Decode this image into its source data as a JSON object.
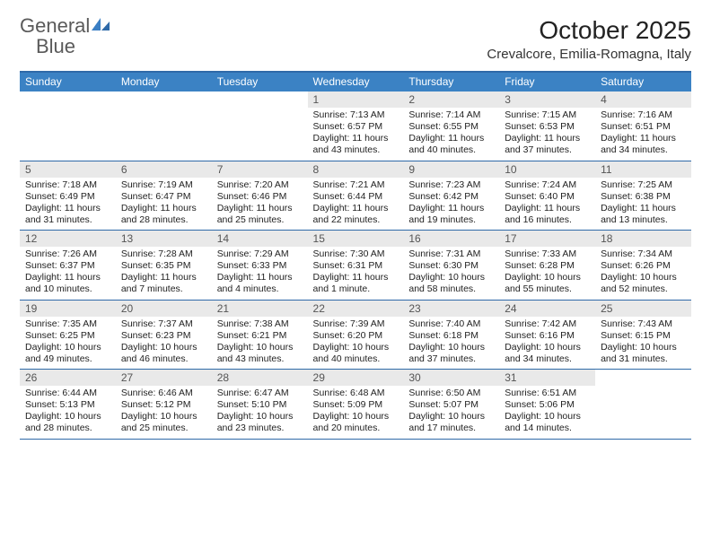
{
  "logo": {
    "text1": "General",
    "text2": "Blue"
  },
  "title": "October 2025",
  "location": "Crevalcore, Emilia-Romagna, Italy",
  "colors": {
    "header_bar": "#3b82c4",
    "header_border": "#2f6aa8",
    "daynum_bg": "#e9e9e9",
    "logo_gray": "#5a5a5a",
    "logo_blue": "#3b7fc4"
  },
  "weekdays": [
    "Sunday",
    "Monday",
    "Tuesday",
    "Wednesday",
    "Thursday",
    "Friday",
    "Saturday"
  ],
  "weeks": [
    [
      {
        "n": "",
        "sr": "",
        "ss": "",
        "dl": ""
      },
      {
        "n": "",
        "sr": "",
        "ss": "",
        "dl": ""
      },
      {
        "n": "",
        "sr": "",
        "ss": "",
        "dl": ""
      },
      {
        "n": "1",
        "sr": "Sunrise: 7:13 AM",
        "ss": "Sunset: 6:57 PM",
        "dl": "Daylight: 11 hours and 43 minutes."
      },
      {
        "n": "2",
        "sr": "Sunrise: 7:14 AM",
        "ss": "Sunset: 6:55 PM",
        "dl": "Daylight: 11 hours and 40 minutes."
      },
      {
        "n": "3",
        "sr": "Sunrise: 7:15 AM",
        "ss": "Sunset: 6:53 PM",
        "dl": "Daylight: 11 hours and 37 minutes."
      },
      {
        "n": "4",
        "sr": "Sunrise: 7:16 AM",
        "ss": "Sunset: 6:51 PM",
        "dl": "Daylight: 11 hours and 34 minutes."
      }
    ],
    [
      {
        "n": "5",
        "sr": "Sunrise: 7:18 AM",
        "ss": "Sunset: 6:49 PM",
        "dl": "Daylight: 11 hours and 31 minutes."
      },
      {
        "n": "6",
        "sr": "Sunrise: 7:19 AM",
        "ss": "Sunset: 6:47 PM",
        "dl": "Daylight: 11 hours and 28 minutes."
      },
      {
        "n": "7",
        "sr": "Sunrise: 7:20 AM",
        "ss": "Sunset: 6:46 PM",
        "dl": "Daylight: 11 hours and 25 minutes."
      },
      {
        "n": "8",
        "sr": "Sunrise: 7:21 AM",
        "ss": "Sunset: 6:44 PM",
        "dl": "Daylight: 11 hours and 22 minutes."
      },
      {
        "n": "9",
        "sr": "Sunrise: 7:23 AM",
        "ss": "Sunset: 6:42 PM",
        "dl": "Daylight: 11 hours and 19 minutes."
      },
      {
        "n": "10",
        "sr": "Sunrise: 7:24 AM",
        "ss": "Sunset: 6:40 PM",
        "dl": "Daylight: 11 hours and 16 minutes."
      },
      {
        "n": "11",
        "sr": "Sunrise: 7:25 AM",
        "ss": "Sunset: 6:38 PM",
        "dl": "Daylight: 11 hours and 13 minutes."
      }
    ],
    [
      {
        "n": "12",
        "sr": "Sunrise: 7:26 AM",
        "ss": "Sunset: 6:37 PM",
        "dl": "Daylight: 11 hours and 10 minutes."
      },
      {
        "n": "13",
        "sr": "Sunrise: 7:28 AM",
        "ss": "Sunset: 6:35 PM",
        "dl": "Daylight: 11 hours and 7 minutes."
      },
      {
        "n": "14",
        "sr": "Sunrise: 7:29 AM",
        "ss": "Sunset: 6:33 PM",
        "dl": "Daylight: 11 hours and 4 minutes."
      },
      {
        "n": "15",
        "sr": "Sunrise: 7:30 AM",
        "ss": "Sunset: 6:31 PM",
        "dl": "Daylight: 11 hours and 1 minute."
      },
      {
        "n": "16",
        "sr": "Sunrise: 7:31 AM",
        "ss": "Sunset: 6:30 PM",
        "dl": "Daylight: 10 hours and 58 minutes."
      },
      {
        "n": "17",
        "sr": "Sunrise: 7:33 AM",
        "ss": "Sunset: 6:28 PM",
        "dl": "Daylight: 10 hours and 55 minutes."
      },
      {
        "n": "18",
        "sr": "Sunrise: 7:34 AM",
        "ss": "Sunset: 6:26 PM",
        "dl": "Daylight: 10 hours and 52 minutes."
      }
    ],
    [
      {
        "n": "19",
        "sr": "Sunrise: 7:35 AM",
        "ss": "Sunset: 6:25 PM",
        "dl": "Daylight: 10 hours and 49 minutes."
      },
      {
        "n": "20",
        "sr": "Sunrise: 7:37 AM",
        "ss": "Sunset: 6:23 PM",
        "dl": "Daylight: 10 hours and 46 minutes."
      },
      {
        "n": "21",
        "sr": "Sunrise: 7:38 AM",
        "ss": "Sunset: 6:21 PM",
        "dl": "Daylight: 10 hours and 43 minutes."
      },
      {
        "n": "22",
        "sr": "Sunrise: 7:39 AM",
        "ss": "Sunset: 6:20 PM",
        "dl": "Daylight: 10 hours and 40 minutes."
      },
      {
        "n": "23",
        "sr": "Sunrise: 7:40 AM",
        "ss": "Sunset: 6:18 PM",
        "dl": "Daylight: 10 hours and 37 minutes."
      },
      {
        "n": "24",
        "sr": "Sunrise: 7:42 AM",
        "ss": "Sunset: 6:16 PM",
        "dl": "Daylight: 10 hours and 34 minutes."
      },
      {
        "n": "25",
        "sr": "Sunrise: 7:43 AM",
        "ss": "Sunset: 6:15 PM",
        "dl": "Daylight: 10 hours and 31 minutes."
      }
    ],
    [
      {
        "n": "26",
        "sr": "Sunrise: 6:44 AM",
        "ss": "Sunset: 5:13 PM",
        "dl": "Daylight: 10 hours and 28 minutes."
      },
      {
        "n": "27",
        "sr": "Sunrise: 6:46 AM",
        "ss": "Sunset: 5:12 PM",
        "dl": "Daylight: 10 hours and 25 minutes."
      },
      {
        "n": "28",
        "sr": "Sunrise: 6:47 AM",
        "ss": "Sunset: 5:10 PM",
        "dl": "Daylight: 10 hours and 23 minutes."
      },
      {
        "n": "29",
        "sr": "Sunrise: 6:48 AM",
        "ss": "Sunset: 5:09 PM",
        "dl": "Daylight: 10 hours and 20 minutes."
      },
      {
        "n": "30",
        "sr": "Sunrise: 6:50 AM",
        "ss": "Sunset: 5:07 PM",
        "dl": "Daylight: 10 hours and 17 minutes."
      },
      {
        "n": "31",
        "sr": "Sunrise: 6:51 AM",
        "ss": "Sunset: 5:06 PM",
        "dl": "Daylight: 10 hours and 14 minutes."
      },
      {
        "n": "",
        "sr": "",
        "ss": "",
        "dl": ""
      }
    ]
  ]
}
